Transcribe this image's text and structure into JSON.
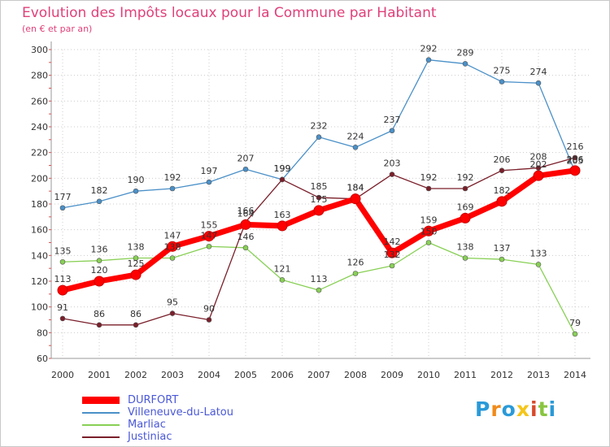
{
  "chart_data": {
    "type": "line",
    "title": "Evolution des Impôts locaux pour la Commune par Habitant",
    "subtitle": "(en € et par an)",
    "xlabel": "",
    "ylabel": "",
    "categories": [
      "2000",
      "2001",
      "2002",
      "2003",
      "2004",
      "2005",
      "2006",
      "2007",
      "2008",
      "2009",
      "2010",
      "2011",
      "2012",
      "2013",
      "2014"
    ],
    "y_ticks": [
      60,
      80,
      100,
      120,
      140,
      160,
      180,
      200,
      220,
      240,
      260,
      280,
      300
    ],
    "ylim": [
      60,
      300
    ],
    "grid": true,
    "legend_position": "bottom-left",
    "series": [
      {
        "name": "Villeneuve-du-Latou",
        "color": "#4a90c8",
        "values": [
          177,
          182,
          190,
          192,
          197,
          207,
          199,
          232,
          224,
          237,
          292,
          289,
          275,
          274,
          205
        ],
        "labels": [
          "177",
          "182",
          "190",
          "192",
          "197",
          "207",
          "199",
          "232",
          "224",
          "237",
          "292",
          "289",
          "275",
          "274",
          "205"
        ]
      },
      {
        "name": "Marliac",
        "color": "#88d055",
        "values": [
          135,
          136,
          138,
          138,
          147,
          146,
          121,
          113,
          126,
          132,
          150,
          138,
          137,
          133,
          79
        ],
        "labels": [
          "135",
          "136",
          "138",
          "138",
          "147",
          "146",
          "121",
          "113",
          "126",
          "132",
          "150",
          "138",
          "137",
          "133",
          "79"
        ]
      },
      {
        "name": "Justiniac",
        "color": "#7a1f2a",
        "values": [
          91,
          86,
          86,
          95,
          90,
          166,
          199,
          185,
          184,
          203,
          192,
          192,
          206,
          208,
          216
        ],
        "labels": [
          "91",
          "86",
          "86",
          "95",
          "90",
          "166",
          "199",
          "185",
          "184",
          "203",
          "192",
          "192",
          "206",
          "208",
          "216"
        ]
      },
      {
        "name": "DURFORT",
        "color": "#ff0000",
        "values": [
          113,
          120,
          125,
          147,
          155,
          164,
          163,
          175,
          184,
          142,
          159,
          169,
          182,
          202,
          206
        ],
        "labels": [
          "113",
          "120",
          "125",
          "147",
          "155",
          "164",
          "163",
          "175",
          "184",
          "142",
          "159",
          "169",
          "182",
          "202",
          "206"
        ]
      }
    ]
  },
  "brand": {
    "letters": [
      "P",
      "r",
      "o",
      "x",
      "i",
      "t",
      "i"
    ],
    "colors": [
      "#2a9ad8",
      "#f08a1a",
      "#2a9ad8",
      "#f5c518",
      "#d84a2a",
      "#88c540",
      "#2a9ad8"
    ]
  }
}
